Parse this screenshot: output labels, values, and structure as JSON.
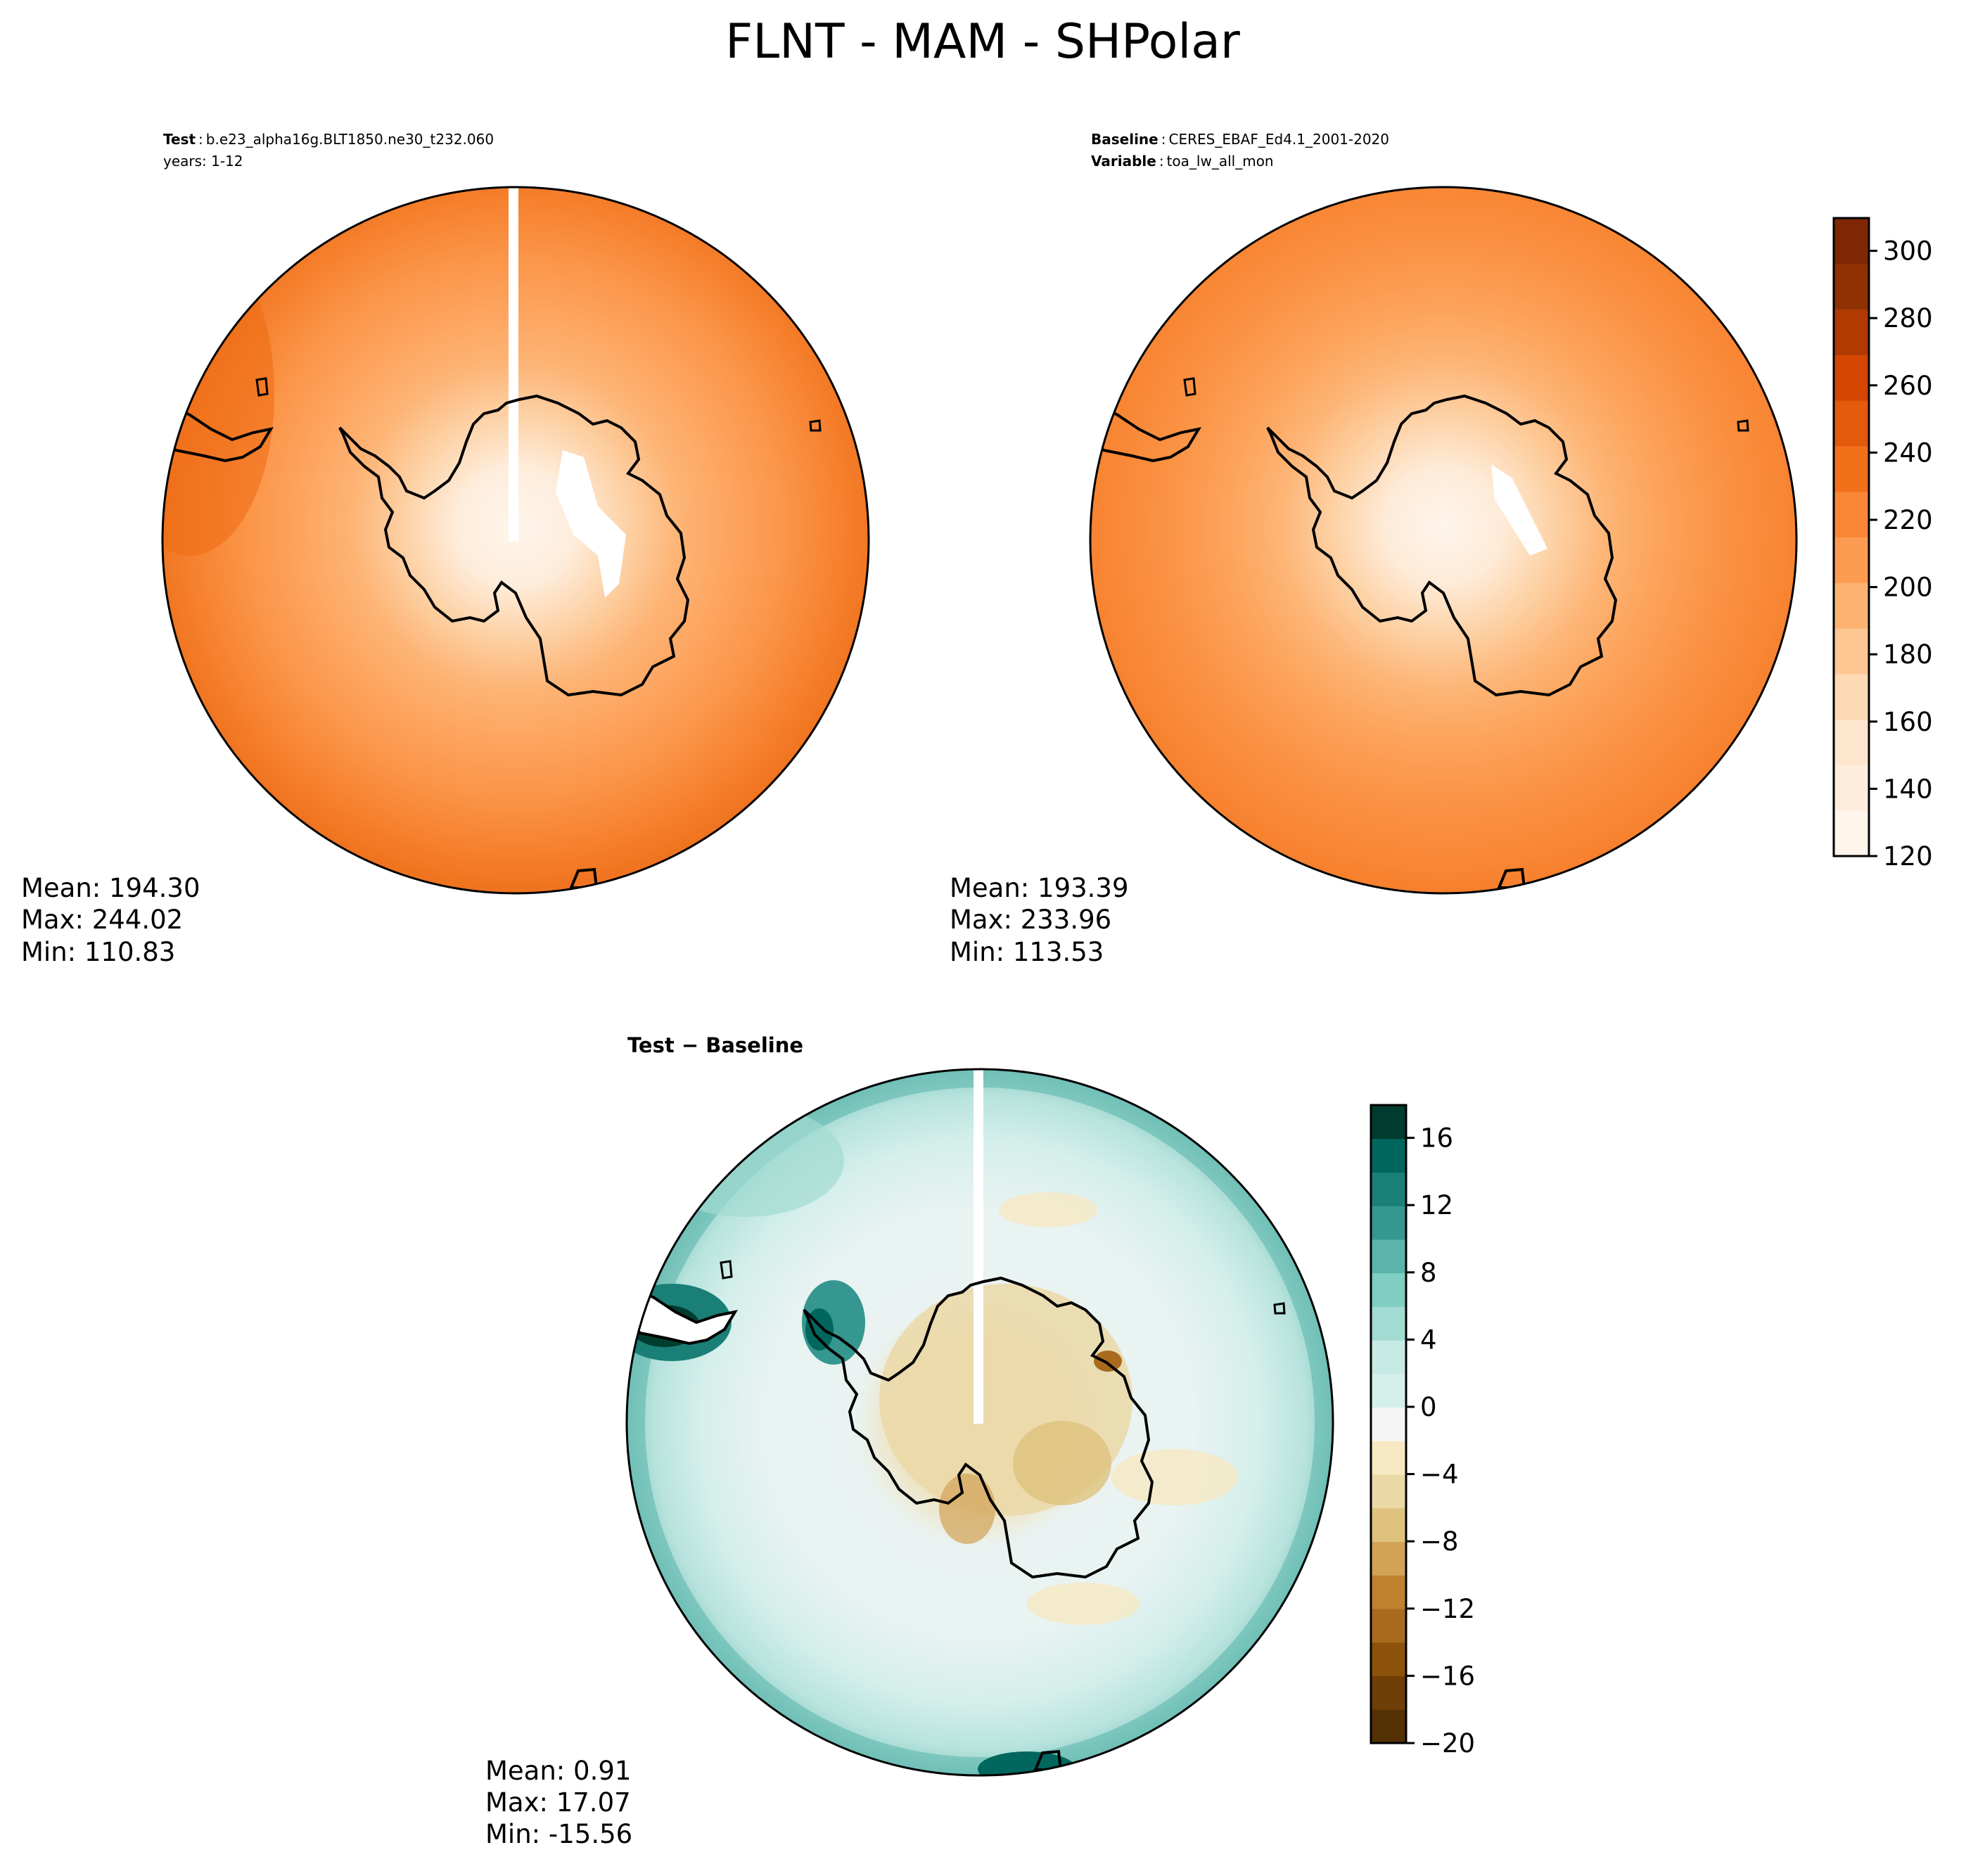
{
  "figure": {
    "title": "FLNT - MAM - SHPolar"
  },
  "panels": {
    "test": {
      "label_bold": "Test",
      "label_value": "b.e23_alpha16g.BLT1850.ne30_t232.060",
      "line2": "years: 1-12",
      "stats": {
        "mean": "Mean: 194.30",
        "max": "Max: 244.02",
        "min": "Min: 110.83"
      }
    },
    "baseline": {
      "label_bold": "Baseline",
      "label_value": "CERES_EBAF_Ed4.1_2001-2020",
      "var_bold": "Variable",
      "var_value": "toa_lw_all_mon",
      "stats": {
        "mean": "Mean: 193.39",
        "max": "Max: 233.96",
        "min": "Min: 113.53"
      }
    },
    "diff": {
      "title": "Test − Baseline",
      "stats": {
        "mean": "Mean:  0.91",
        "max": "Max: 17.07",
        "min": "Min: -15.56"
      }
    }
  },
  "colorbars": {
    "main": {
      "ticks": [
        "120",
        "140",
        "160",
        "180",
        "200",
        "220",
        "240",
        "260",
        "280",
        "300"
      ],
      "colors": [
        "#fff5eb",
        "#feeddc",
        "#fee6ce",
        "#fdd9b4",
        "#fdc794",
        "#fdb271",
        "#fd9c51",
        "#f98634",
        "#f3701b",
        "#e45a0c",
        "#d44601",
        "#b03a02",
        "#8f3103",
        "#7f2704"
      ]
    },
    "diff": {
      "ticks": [
        "−20",
        "−16",
        "−12",
        "−8",
        "−4",
        "0",
        "4",
        "8",
        "12",
        "16"
      ],
      "colors": [
        "#543005",
        "#6f3f07",
        "#8c510a",
        "#a86b1e",
        "#bf812d",
        "#d2a356",
        "#dfc27d",
        "#ebd8a7",
        "#f6e8c3",
        "#f5f5f5",
        "#d5efeb",
        "#c7eae5",
        "#a2dbd2",
        "#80cdc1",
        "#5ab4ac",
        "#35978f",
        "#1a7f76",
        "#01665e",
        "#003c30"
      ]
    }
  },
  "colors": {
    "land_outline": "#000000",
    "polar_gap": "#ffffff"
  }
}
